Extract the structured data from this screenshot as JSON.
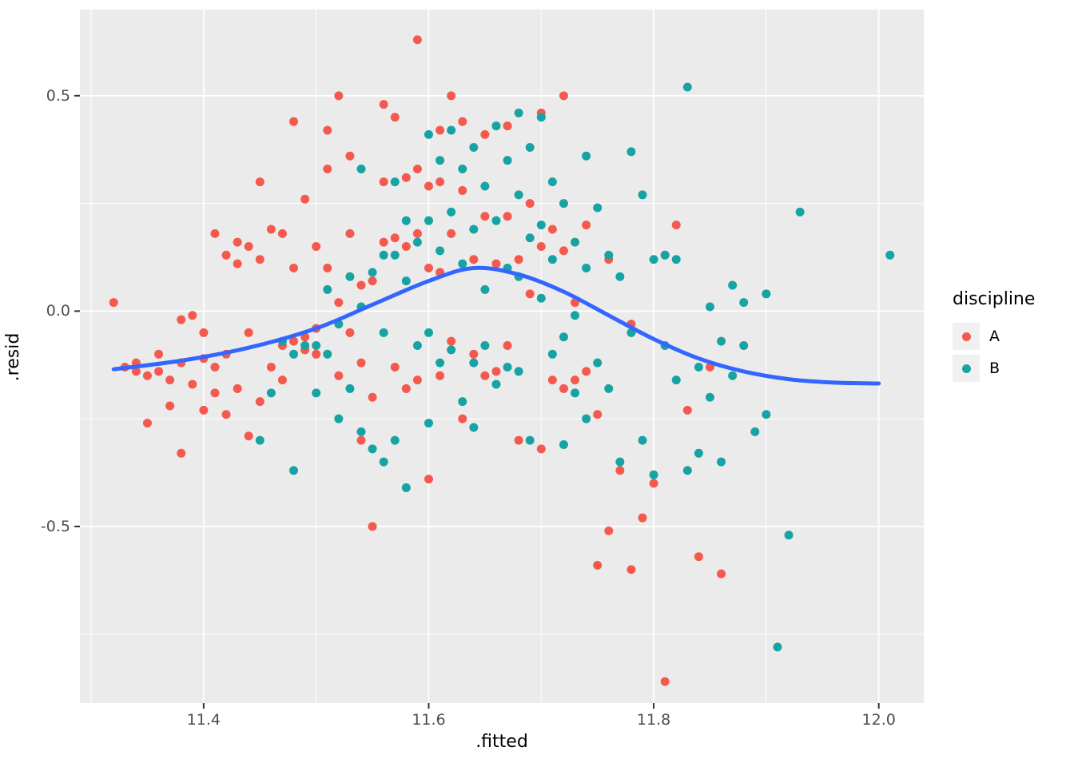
{
  "chart_data": {
    "type": "scatter",
    "title": "",
    "xlabel": ".fitted",
    "ylabel": ".resid",
    "xlim": [
      11.29,
      12.04
    ],
    "ylim": [
      -0.91,
      0.7
    ],
    "grid": true,
    "background": "#FFFFFF",
    "panel_background": "#EBEBEB",
    "grid_color": "#FFFFFF",
    "tick_color": "#333333",
    "tick_label_color": "#4D4D4D",
    "x_major_ticks": [
      11.4,
      11.6,
      11.8,
      12.0
    ],
    "x_tick_labels": [
      "11.4",
      "11.6",
      "11.8",
      "12.0"
    ],
    "x_minor_ticks": [
      11.3,
      11.5,
      11.7,
      11.9
    ],
    "y_major_ticks": [
      -0.5,
      0.0,
      0.5
    ],
    "y_tick_labels": [
      "-0.5",
      "0.0",
      "0.5"
    ],
    "y_minor_ticks": [
      -0.75,
      -0.25,
      0.25
    ],
    "legend": {
      "title": "discipline",
      "position": "right"
    },
    "smooth_line": {
      "name": "loess-smooth",
      "color": "#3366FF",
      "points": [
        [
          11.32,
          -0.135
        ],
        [
          11.38,
          -0.115
        ],
        [
          11.44,
          -0.085
        ],
        [
          11.5,
          -0.04
        ],
        [
          11.55,
          0.015
        ],
        [
          11.6,
          0.07
        ],
        [
          11.64,
          0.1
        ],
        [
          11.68,
          0.085
        ],
        [
          11.72,
          0.045
        ],
        [
          11.76,
          -0.01
        ],
        [
          11.8,
          -0.065
        ],
        [
          11.84,
          -0.11
        ],
        [
          11.88,
          -0.14
        ],
        [
          11.92,
          -0.158
        ],
        [
          11.96,
          -0.166
        ],
        [
          12.0,
          -0.168
        ]
      ]
    },
    "series": [
      {
        "name": "A",
        "color": "#F4594E",
        "points": [
          [
            11.32,
            0.02
          ],
          [
            11.33,
            -0.13
          ],
          [
            11.34,
            -0.14
          ],
          [
            11.34,
            -0.12
          ],
          [
            11.35,
            -0.15
          ],
          [
            11.35,
            -0.26
          ],
          [
            11.36,
            -0.1
          ],
          [
            11.36,
            -0.14
          ],
          [
            11.37,
            -0.16
          ],
          [
            11.37,
            -0.22
          ],
          [
            11.38,
            -0.02
          ],
          [
            11.38,
            -0.12
          ],
          [
            11.38,
            -0.33
          ],
          [
            11.39,
            -0.01
          ],
          [
            11.39,
            -0.17
          ],
          [
            11.4,
            -0.05
          ],
          [
            11.4,
            -0.11
          ],
          [
            11.4,
            -0.23
          ],
          [
            11.41,
            0.18
          ],
          [
            11.41,
            -0.13
          ],
          [
            11.41,
            -0.19
          ],
          [
            11.42,
            0.13
          ],
          [
            11.42,
            -0.1
          ],
          [
            11.42,
            -0.24
          ],
          [
            11.43,
            0.16
          ],
          [
            11.43,
            0.11
          ],
          [
            11.43,
            -0.18
          ],
          [
            11.44,
            0.15
          ],
          [
            11.44,
            -0.05
          ],
          [
            11.44,
            -0.29
          ],
          [
            11.45,
            0.3
          ],
          [
            11.45,
            0.12
          ],
          [
            11.45,
            -0.21
          ],
          [
            11.46,
            0.19
          ],
          [
            11.46,
            -0.13
          ],
          [
            11.47,
            0.18
          ],
          [
            11.47,
            -0.08
          ],
          [
            11.47,
            -0.16
          ],
          [
            11.48,
            0.44
          ],
          [
            11.48,
            0.1
          ],
          [
            11.48,
            -0.07
          ],
          [
            11.49,
            0.26
          ],
          [
            11.49,
            -0.06
          ],
          [
            11.49,
            -0.09
          ],
          [
            11.5,
            0.15
          ],
          [
            11.5,
            -0.04
          ],
          [
            11.5,
            -0.1
          ],
          [
            11.51,
            0.42
          ],
          [
            11.51,
            0.33
          ],
          [
            11.51,
            0.1
          ],
          [
            11.52,
            0.5
          ],
          [
            11.52,
            0.02
          ],
          [
            11.52,
            -0.15
          ],
          [
            11.53,
            0.36
          ],
          [
            11.53,
            0.18
          ],
          [
            11.53,
            -0.05
          ],
          [
            11.54,
            0.06
          ],
          [
            11.54,
            -0.12
          ],
          [
            11.54,
            -0.3
          ],
          [
            11.55,
            0.07
          ],
          [
            11.55,
            -0.2
          ],
          [
            11.55,
            -0.5
          ],
          [
            11.56,
            0.48
          ],
          [
            11.56,
            0.3
          ],
          [
            11.56,
            0.16
          ],
          [
            11.57,
            0.45
          ],
          [
            11.57,
            0.17
          ],
          [
            11.57,
            -0.13
          ],
          [
            11.58,
            0.31
          ],
          [
            11.58,
            0.15
          ],
          [
            11.58,
            -0.18
          ],
          [
            11.59,
            0.63
          ],
          [
            11.59,
            0.33
          ],
          [
            11.59,
            0.18
          ],
          [
            11.59,
            -0.16
          ],
          [
            11.6,
            0.29
          ],
          [
            11.6,
            0.1
          ],
          [
            11.6,
            -0.39
          ],
          [
            11.61,
            0.42
          ],
          [
            11.61,
            0.3
          ],
          [
            11.61,
            0.09
          ],
          [
            11.61,
            -0.15
          ],
          [
            11.62,
            0.5
          ],
          [
            11.62,
            0.18
          ],
          [
            11.62,
            -0.07
          ],
          [
            11.63,
            0.44
          ],
          [
            11.63,
            0.28
          ],
          [
            11.63,
            -0.25
          ],
          [
            11.64,
            0.12
          ],
          [
            11.64,
            -0.1
          ],
          [
            11.65,
            0.41
          ],
          [
            11.65,
            0.22
          ],
          [
            11.65,
            -0.15
          ],
          [
            11.66,
            0.11
          ],
          [
            11.66,
            -0.14
          ],
          [
            11.67,
            0.43
          ],
          [
            11.67,
            0.22
          ],
          [
            11.67,
            -0.08
          ],
          [
            11.68,
            0.12
          ],
          [
            11.68,
            -0.3
          ],
          [
            11.69,
            0.25
          ],
          [
            11.69,
            0.04
          ],
          [
            11.7,
            0.46
          ],
          [
            11.7,
            0.15
          ],
          [
            11.7,
            -0.32
          ],
          [
            11.71,
            0.19
          ],
          [
            11.71,
            -0.16
          ],
          [
            11.72,
            0.5
          ],
          [
            11.72,
            0.14
          ],
          [
            11.72,
            -0.18
          ],
          [
            11.73,
            0.02
          ],
          [
            11.73,
            -0.16
          ],
          [
            11.74,
            0.2
          ],
          [
            11.74,
            -0.14
          ],
          [
            11.75,
            -0.24
          ],
          [
            11.75,
            -0.59
          ],
          [
            11.76,
            0.12
          ],
          [
            11.76,
            -0.51
          ],
          [
            11.77,
            -0.37
          ],
          [
            11.78,
            -0.03
          ],
          [
            11.78,
            -0.6
          ],
          [
            11.79,
            -0.48
          ],
          [
            11.8,
            -0.4
          ],
          [
            11.81,
            0.13
          ],
          [
            11.81,
            -0.86
          ],
          [
            11.82,
            0.2
          ],
          [
            11.83,
            -0.23
          ],
          [
            11.84,
            -0.57
          ],
          [
            11.85,
            -0.13
          ],
          [
            11.86,
            -0.61
          ]
        ]
      },
      {
        "name": "B",
        "color": "#17A3A3",
        "points": [
          [
            11.45,
            -0.3
          ],
          [
            11.46,
            -0.19
          ],
          [
            11.47,
            -0.07
          ],
          [
            11.48,
            -0.1
          ],
          [
            11.48,
            -0.37
          ],
          [
            11.49,
            -0.08
          ],
          [
            11.5,
            -0.19
          ],
          [
            11.5,
            -0.08
          ],
          [
            11.51,
            0.05
          ],
          [
            11.51,
            -0.1
          ],
          [
            11.52,
            -0.03
          ],
          [
            11.52,
            -0.25
          ],
          [
            11.53,
            0.08
          ],
          [
            11.53,
            -0.18
          ],
          [
            11.54,
            0.33
          ],
          [
            11.54,
            0.01
          ],
          [
            11.54,
            -0.28
          ],
          [
            11.55,
            0.09
          ],
          [
            11.55,
            -0.32
          ],
          [
            11.56,
            0.13
          ],
          [
            11.56,
            -0.05
          ],
          [
            11.56,
            -0.35
          ],
          [
            11.57,
            0.3
          ],
          [
            11.57,
            0.13
          ],
          [
            11.57,
            -0.3
          ],
          [
            11.58,
            0.21
          ],
          [
            11.58,
            0.07
          ],
          [
            11.58,
            -0.41
          ],
          [
            11.59,
            0.16
          ],
          [
            11.59,
            -0.08
          ],
          [
            11.6,
            0.41
          ],
          [
            11.6,
            0.21
          ],
          [
            11.6,
            -0.05
          ],
          [
            11.6,
            -0.26
          ],
          [
            11.61,
            0.35
          ],
          [
            11.61,
            0.14
          ],
          [
            11.61,
            -0.12
          ],
          [
            11.62,
            0.42
          ],
          [
            11.62,
            0.23
          ],
          [
            11.62,
            -0.09
          ],
          [
            11.63,
            0.33
          ],
          [
            11.63,
            0.11
          ],
          [
            11.63,
            -0.21
          ],
          [
            11.64,
            0.38
          ],
          [
            11.64,
            0.19
          ],
          [
            11.64,
            -0.12
          ],
          [
            11.64,
            -0.27
          ],
          [
            11.65,
            0.29
          ],
          [
            11.65,
            0.05
          ],
          [
            11.65,
            -0.08
          ],
          [
            11.66,
            0.43
          ],
          [
            11.66,
            0.21
          ],
          [
            11.66,
            -0.17
          ],
          [
            11.67,
            0.35
          ],
          [
            11.67,
            0.1
          ],
          [
            11.67,
            -0.13
          ],
          [
            11.68,
            0.46
          ],
          [
            11.68,
            0.27
          ],
          [
            11.68,
            0.08
          ],
          [
            11.68,
            -0.14
          ],
          [
            11.69,
            0.38
          ],
          [
            11.69,
            0.17
          ],
          [
            11.69,
            -0.3
          ],
          [
            11.7,
            0.45
          ],
          [
            11.7,
            0.2
          ],
          [
            11.7,
            0.03
          ],
          [
            11.71,
            0.3
          ],
          [
            11.71,
            0.12
          ],
          [
            11.71,
            -0.1
          ],
          [
            11.72,
            0.25
          ],
          [
            11.72,
            -0.06
          ],
          [
            11.72,
            -0.31
          ],
          [
            11.73,
            0.16
          ],
          [
            11.73,
            -0.01
          ],
          [
            11.73,
            -0.19
          ],
          [
            11.74,
            0.36
          ],
          [
            11.74,
            0.1
          ],
          [
            11.74,
            -0.25
          ],
          [
            11.75,
            0.24
          ],
          [
            11.75,
            -0.12
          ],
          [
            11.76,
            0.13
          ],
          [
            11.76,
            -0.18
          ],
          [
            11.77,
            0.08
          ],
          [
            11.77,
            -0.35
          ],
          [
            11.78,
            0.37
          ],
          [
            11.78,
            -0.05
          ],
          [
            11.79,
            0.27
          ],
          [
            11.79,
            -0.3
          ],
          [
            11.8,
            0.12
          ],
          [
            11.8,
            -0.38
          ],
          [
            11.81,
            0.13
          ],
          [
            11.81,
            -0.08
          ],
          [
            11.82,
            0.12
          ],
          [
            11.82,
            -0.16
          ],
          [
            11.83,
            0.52
          ],
          [
            11.83,
            -0.37
          ],
          [
            11.84,
            -0.13
          ],
          [
            11.84,
            -0.33
          ],
          [
            11.85,
            0.01
          ],
          [
            11.85,
            -0.2
          ],
          [
            11.86,
            -0.07
          ],
          [
            11.86,
            -0.35
          ],
          [
            11.87,
            0.06
          ],
          [
            11.87,
            -0.15
          ],
          [
            11.88,
            0.02
          ],
          [
            11.88,
            -0.08
          ],
          [
            11.89,
            -0.28
          ],
          [
            11.9,
            0.04
          ],
          [
            11.9,
            -0.24
          ],
          [
            11.91,
            -0.78
          ],
          [
            11.92,
            -0.52
          ],
          [
            11.93,
            0.23
          ],
          [
            12.01,
            0.13
          ]
        ]
      }
    ]
  }
}
